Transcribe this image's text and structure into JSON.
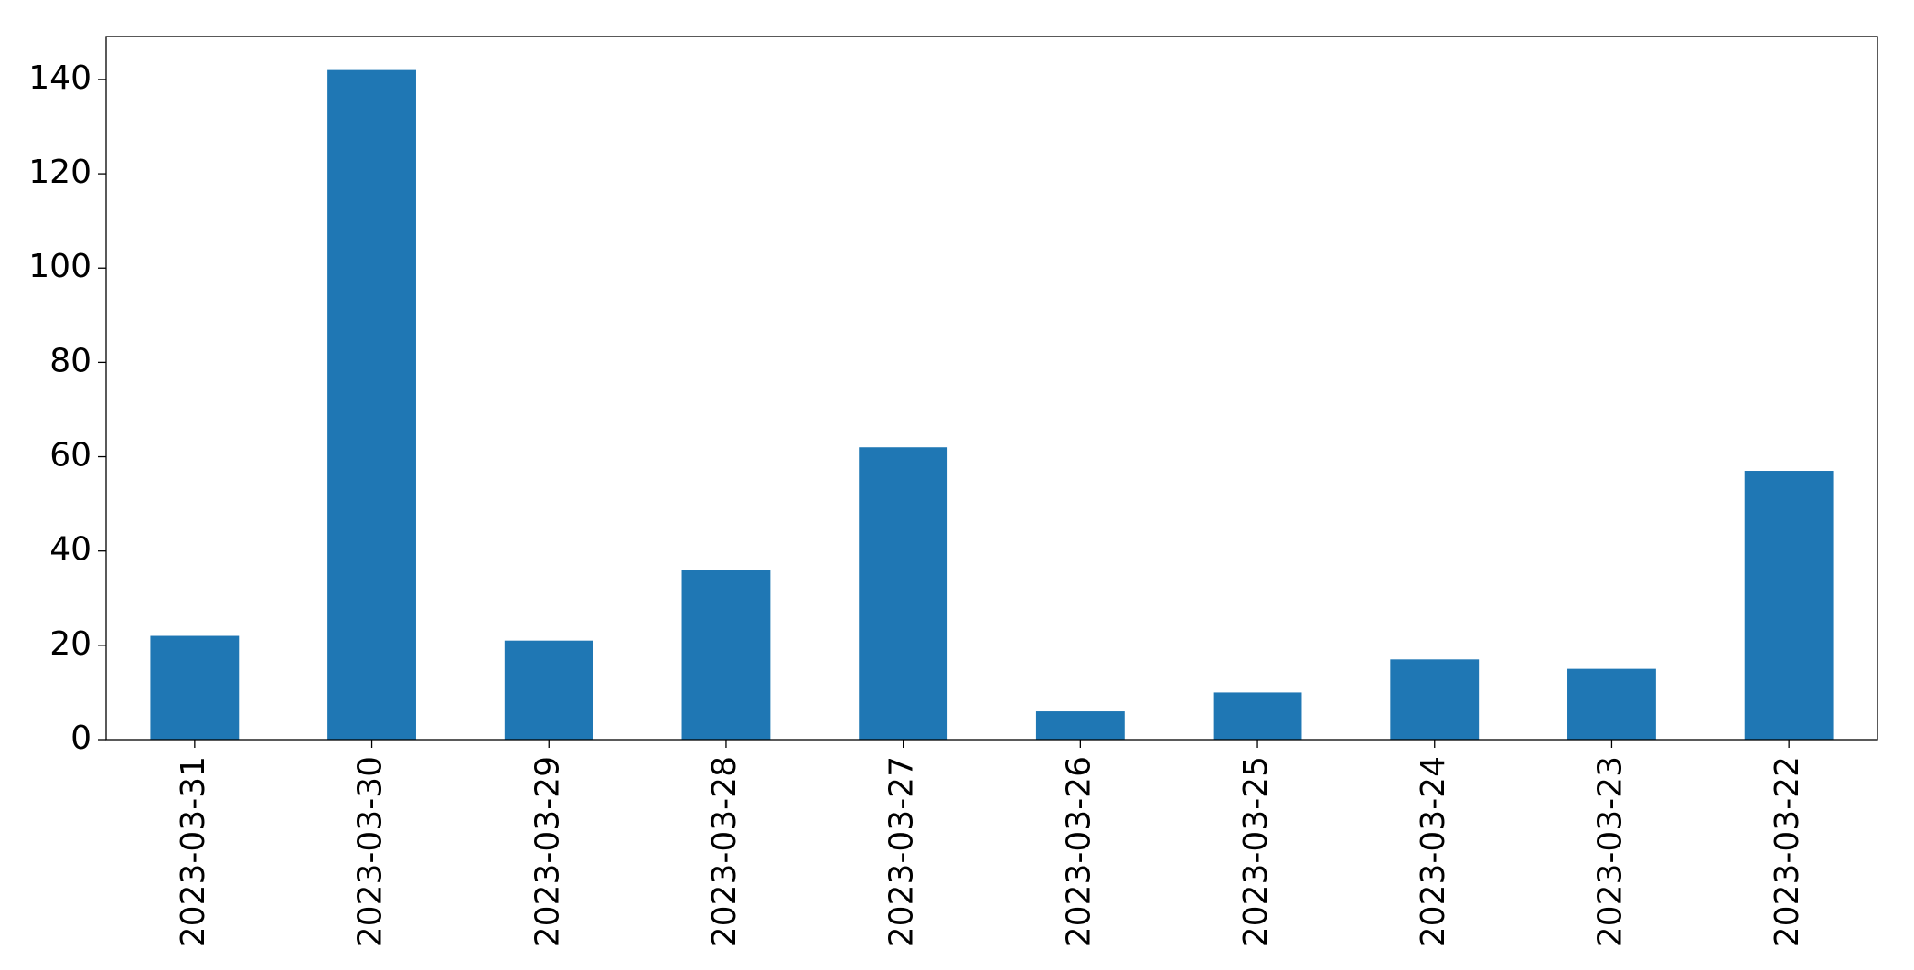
{
  "chart_data": {
    "type": "bar",
    "categories": [
      "2023-03-31",
      "2023-03-30",
      "2023-03-29",
      "2023-03-28",
      "2023-03-27",
      "2023-03-26",
      "2023-03-25",
      "2023-03-24",
      "2023-03-23",
      "2023-03-22"
    ],
    "values": [
      22,
      142,
      21,
      36,
      62,
      6,
      10,
      17,
      15,
      57
    ],
    "color": "#1f77b4",
    "ylim": [
      0,
      149.1
    ],
    "yticks": [
      0,
      20,
      40,
      60,
      80,
      100,
      120,
      140
    ],
    "grid": false
  }
}
